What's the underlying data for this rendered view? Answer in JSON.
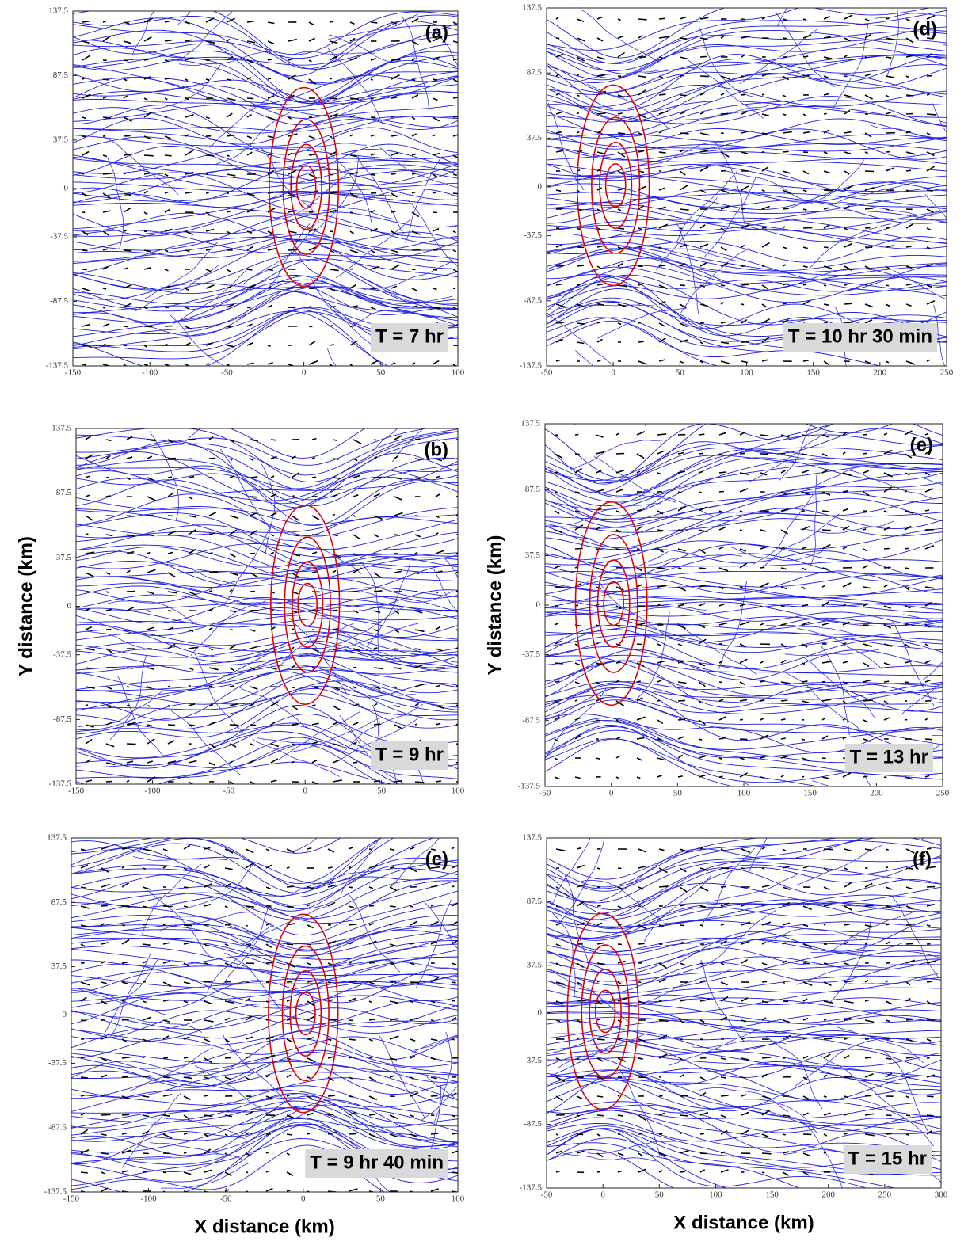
{
  "chart_data": [
    {
      "type": "streamline",
      "panel": "(a)",
      "annotation": "T = 7 hr",
      "xlim": [
        -150,
        100
      ],
      "xticks": [
        -150,
        -100,
        -50,
        0,
        50,
        100
      ],
      "ylim": [
        -137.5,
        137.5
      ],
      "yticks": [
        -137.5,
        -87.5,
        -37.5,
        0,
        37.5,
        87.5,
        137.5
      ]
    },
    {
      "type": "streamline",
      "panel": "(b)",
      "annotation": "T = 9 hr",
      "ylabel": "Y distance (km)",
      "xlim": [
        -150,
        100
      ],
      "xticks": [
        -150,
        -100,
        -50,
        0,
        50,
        100
      ],
      "ylim": [
        -137.5,
        137.5
      ],
      "yticks": [
        -137.5,
        -87.5,
        -37.5,
        0,
        37.5,
        87.5,
        137.5
      ]
    },
    {
      "type": "streamline",
      "panel": "(c)",
      "annotation": "T = 9 hr 40 min",
      "xlabel": "X distance (km)",
      "xlim": [
        -150,
        100
      ],
      "xticks": [
        -150,
        -100,
        -50,
        0,
        50,
        100
      ],
      "ylim": [
        -137.5,
        137.5
      ],
      "yticks": [
        -137.5,
        -87.5,
        -37.5,
        0,
        37.5,
        87.5,
        137.5
      ]
    },
    {
      "type": "streamline",
      "panel": "(d)",
      "annotation": "T = 10 hr 30 min",
      "xlim": [
        -50,
        250
      ],
      "xticks": [
        -50,
        0,
        50,
        100,
        150,
        200,
        250
      ],
      "ylim": [
        -137.5,
        137.5
      ],
      "yticks": [
        -137.5,
        -87.5,
        -37.5,
        0,
        37.5,
        87.5,
        137.5
      ]
    },
    {
      "type": "streamline",
      "panel": "(e)",
      "annotation": "T = 13 hr",
      "ylabel": "Y distance (km)",
      "xlim": [
        -50,
        250
      ],
      "xticks": [
        -50,
        0,
        50,
        100,
        150,
        200,
        250
      ],
      "ylim": [
        -137.5,
        137.5
      ],
      "yticks": [
        -137.5,
        -87.5,
        -37.5,
        0,
        37.5,
        87.5,
        137.5
      ]
    },
    {
      "type": "streamline",
      "panel": "(f)",
      "annotation": "T = 15 hr",
      "xlabel": "X distance (km)",
      "xlim": [
        -50,
        300
      ],
      "xticks": [
        -50,
        0,
        50,
        100,
        150,
        200,
        250,
        300
      ],
      "ylim": [
        -137.5,
        137.5
      ],
      "yticks": [
        -137.5,
        -87.5,
        -37.5,
        0,
        37.5,
        87.5,
        137.5
      ]
    }
  ]
}
